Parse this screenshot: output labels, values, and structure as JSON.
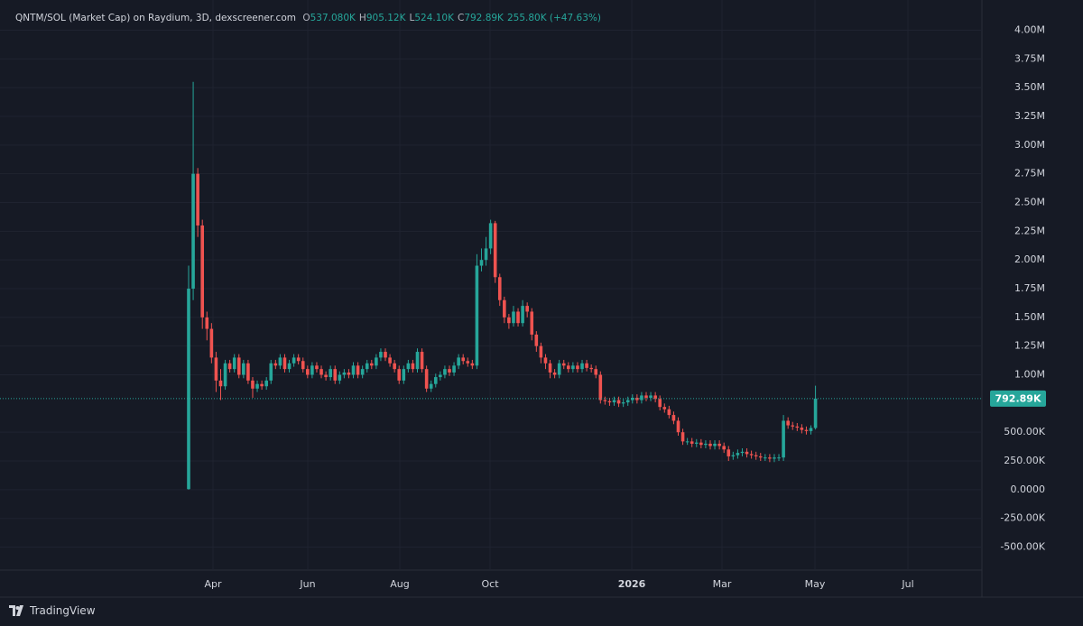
{
  "chart_data": {
    "type": "candlestick",
    "title": "QNTM/SOL (Market Cap) on Raydium, 3D, dexscreener.com",
    "ohlc_legend": [
      {
        "key": "O",
        "value": "537.080K"
      },
      {
        "key": "H",
        "value": "905.12K"
      },
      {
        "key": "L",
        "value": "524.10K"
      },
      {
        "key": "C",
        "value": "792.89K"
      }
    ],
    "change": "255.80K (+47.63%)",
    "up_color": "#26a69a",
    "down_color": "#ef5350",
    "grid": true,
    "ylim": [
      -700000,
      4200000
    ],
    "yticks": [
      {
        "value": 4000000,
        "label": "4.00M"
      },
      {
        "value": 3750000,
        "label": "3.75M"
      },
      {
        "value": 3500000,
        "label": "3.50M"
      },
      {
        "value": 3250000,
        "label": "3.25M"
      },
      {
        "value": 3000000,
        "label": "3.00M"
      },
      {
        "value": 2750000,
        "label": "2.75M"
      },
      {
        "value": 2500000,
        "label": "2.50M"
      },
      {
        "value": 2250000,
        "label": "2.25M"
      },
      {
        "value": 2000000,
        "label": "2.00M"
      },
      {
        "value": 1750000,
        "label": "1.75M"
      },
      {
        "value": 1500000,
        "label": "1.50M"
      },
      {
        "value": 1250000,
        "label": "1.25M"
      },
      {
        "value": 1000000,
        "label": "1.00M"
      },
      {
        "value": 500000,
        "label": "500.00K"
      },
      {
        "value": 250000,
        "label": "250.00K"
      },
      {
        "value": 0,
        "label": "0.0000"
      },
      {
        "value": -250000,
        "label": "-250.00K"
      },
      {
        "value": -500000,
        "label": "-500.00K"
      }
    ],
    "x_labels": [
      "Apr",
      "Jun",
      "Aug",
      "Oct",
      "2026",
      "Mar",
      "May",
      "Jul"
    ],
    "last_price": {
      "value": 792890,
      "label": "792.89K"
    },
    "open": [
      5000,
      1750000,
      2750000,
      2300000,
      1500000,
      1400000,
      1150000,
      950000,
      900000,
      1100000,
      1050000,
      1150000,
      1000000,
      1100000,
      950000,
      880000,
      920000,
      900000,
      950000,
      1100000,
      1080000,
      1150000,
      1050000,
      1100000,
      1150000,
      1120000,
      1050000,
      1000000,
      1080000,
      1050000,
      1000000,
      980000,
      1050000,
      950000,
      1000000,
      1020000,
      1000000,
      1080000,
      1000000,
      1050000,
      1100000,
      1080000,
      1150000,
      1200000,
      1150000,
      1100000,
      1050000,
      950000,
      1050000,
      1100000,
      1050000,
      1200000,
      1050000,
      880000,
      920000,
      980000,
      1000000,
      1050000,
      1020000,
      1080000,
      1150000,
      1120000,
      1100000,
      1080000,
      1950000,
      2000000,
      2100000,
      2320000,
      1850000,
      1650000,
      1500000,
      1450000,
      1550000,
      1450000,
      1600000,
      1550000,
      1350000,
      1250000,
      1150000,
      1100000,
      1020000,
      1000000,
      1100000,
      1080000,
      1050000,
      1080000,
      1050000,
      1100000,
      1060000,
      1050000,
      1000000,
      780000,
      770000,
      760000,
      780000,
      750000,
      760000,
      780000,
      800000,
      780000,
      820000,
      800000,
      820000,
      790000,
      720000,
      700000,
      650000,
      600000,
      500000,
      420000,
      420000,
      400000,
      410000,
      390000,
      400000,
      380000,
      400000,
      380000,
      350000,
      290000,
      300000,
      320000,
      330000,
      310000,
      300000,
      290000,
      280000,
      280000,
      270000,
      280000,
      280000,
      600000,
      560000,
      550000,
      540000,
      520000,
      510000,
      537080
    ],
    "high": [
      1950000,
      3550000,
      2800000,
      2350000,
      1550000,
      1450000,
      1200000,
      1050000,
      1130000,
      1130000,
      1180000,
      1180000,
      1130000,
      1130000,
      980000,
      950000,
      950000,
      980000,
      1130000,
      1130000,
      1180000,
      1180000,
      1130000,
      1180000,
      1180000,
      1150000,
      1080000,
      1110000,
      1110000,
      1080000,
      1030000,
      1080000,
      1080000,
      1030000,
      1050000,
      1050000,
      1110000,
      1110000,
      1080000,
      1130000,
      1130000,
      1180000,
      1230000,
      1230000,
      1180000,
      1130000,
      1080000,
      1080000,
      1130000,
      1130000,
      1230000,
      1230000,
      1080000,
      950000,
      1010000,
      1030000,
      1080000,
      1080000,
      1110000,
      1180000,
      1180000,
      1150000,
      1130000,
      2050000,
      2100000,
      2200000,
      2350000,
      2340000,
      1880000,
      1680000,
      1530000,
      1600000,
      1580000,
      1650000,
      1630000,
      1580000,
      1380000,
      1280000,
      1180000,
      1130000,
      1050000,
      1130000,
      1130000,
      1110000,
      1110000,
      1110000,
      1130000,
      1130000,
      1090000,
      1080000,
      1030000,
      810000,
      800000,
      810000,
      810000,
      790000,
      810000,
      830000,
      830000,
      850000,
      850000,
      850000,
      850000,
      820000,
      750000,
      730000,
      680000,
      630000,
      530000,
      450000,
      450000,
      440000,
      440000,
      430000,
      430000,
      430000,
      430000,
      410000,
      380000,
      330000,
      350000,
      360000,
      360000,
      340000,
      330000,
      320000,
      310000,
      310000,
      310000,
      310000,
      650000,
      630000,
      590000,
      580000,
      570000,
      550000,
      560000,
      905120
    ],
    "low": [
      0,
      1650000,
      2200000,
      1400000,
      1300000,
      1100000,
      850000,
      780000,
      870000,
      1020000,
      1020000,
      970000,
      970000,
      920000,
      800000,
      850000,
      870000,
      870000,
      920000,
      1050000,
      1050000,
      1020000,
      1020000,
      1070000,
      1090000,
      1020000,
      970000,
      970000,
      1020000,
      970000,
      950000,
      950000,
      920000,
      920000,
      970000,
      970000,
      970000,
      970000,
      970000,
      1020000,
      1050000,
      1050000,
      1120000,
      1120000,
      1070000,
      1020000,
      920000,
      920000,
      1020000,
      1020000,
      1020000,
      1020000,
      850000,
      850000,
      890000,
      950000,
      970000,
      990000,
      990000,
      1050000,
      1090000,
      1070000,
      1050000,
      1050000,
      1900000,
      1950000,
      2050000,
      1800000,
      1600000,
      1450000,
      1400000,
      1420000,
      1420000,
      1420000,
      1500000,
      1300000,
      1200000,
      1100000,
      1050000,
      970000,
      970000,
      970000,
      1050000,
      1020000,
      1020000,
      1020000,
      1020000,
      1030000,
      1020000,
      970000,
      750000,
      740000,
      730000,
      730000,
      720000,
      720000,
      730000,
      750000,
      750000,
      750000,
      770000,
      770000,
      760000,
      690000,
      670000,
      620000,
      570000,
      470000,
      390000,
      390000,
      370000,
      370000,
      360000,
      360000,
      350000,
      350000,
      350000,
      320000,
      250000,
      260000,
      270000,
      290000,
      280000,
      270000,
      260000,
      250000,
      250000,
      240000,
      240000,
      250000,
      250000,
      530000,
      520000,
      510000,
      490000,
      480000,
      480000,
      524100
    ],
    "close": [
      1750000,
      2750000,
      2300000,
      1500000,
      1400000,
      1150000,
      950000,
      900000,
      1100000,
      1050000,
      1150000,
      1000000,
      1100000,
      950000,
      880000,
      920000,
      900000,
      950000,
      1100000,
      1080000,
      1150000,
      1050000,
      1100000,
      1150000,
      1120000,
      1050000,
      1000000,
      1080000,
      1050000,
      1000000,
      980000,
      1050000,
      950000,
      1000000,
      1020000,
      1000000,
      1080000,
      1000000,
      1050000,
      1100000,
      1080000,
      1150000,
      1200000,
      1150000,
      1100000,
      1050000,
      950000,
      1050000,
      1100000,
      1050000,
      1200000,
      1050000,
      880000,
      920000,
      980000,
      1000000,
      1050000,
      1020000,
      1080000,
      1150000,
      1120000,
      1100000,
      1080000,
      1950000,
      2000000,
      2100000,
      2320000,
      1850000,
      1650000,
      1500000,
      1450000,
      1550000,
      1450000,
      1600000,
      1550000,
      1350000,
      1250000,
      1150000,
      1100000,
      1020000,
      1000000,
      1100000,
      1080000,
      1050000,
      1080000,
      1050000,
      1100000,
      1060000,
      1050000,
      1000000,
      780000,
      770000,
      760000,
      780000,
      750000,
      760000,
      780000,
      800000,
      780000,
      820000,
      800000,
      820000,
      790000,
      720000,
      700000,
      650000,
      600000,
      500000,
      420000,
      420000,
      400000,
      410000,
      390000,
      400000,
      380000,
      400000,
      380000,
      350000,
      290000,
      300000,
      320000,
      330000,
      310000,
      300000,
      290000,
      280000,
      280000,
      270000,
      280000,
      280000,
      600000,
      560000,
      550000,
      540000,
      520000,
      510000,
      537080,
      792890
    ]
  },
  "footer": {
    "brand": "TradingView"
  }
}
